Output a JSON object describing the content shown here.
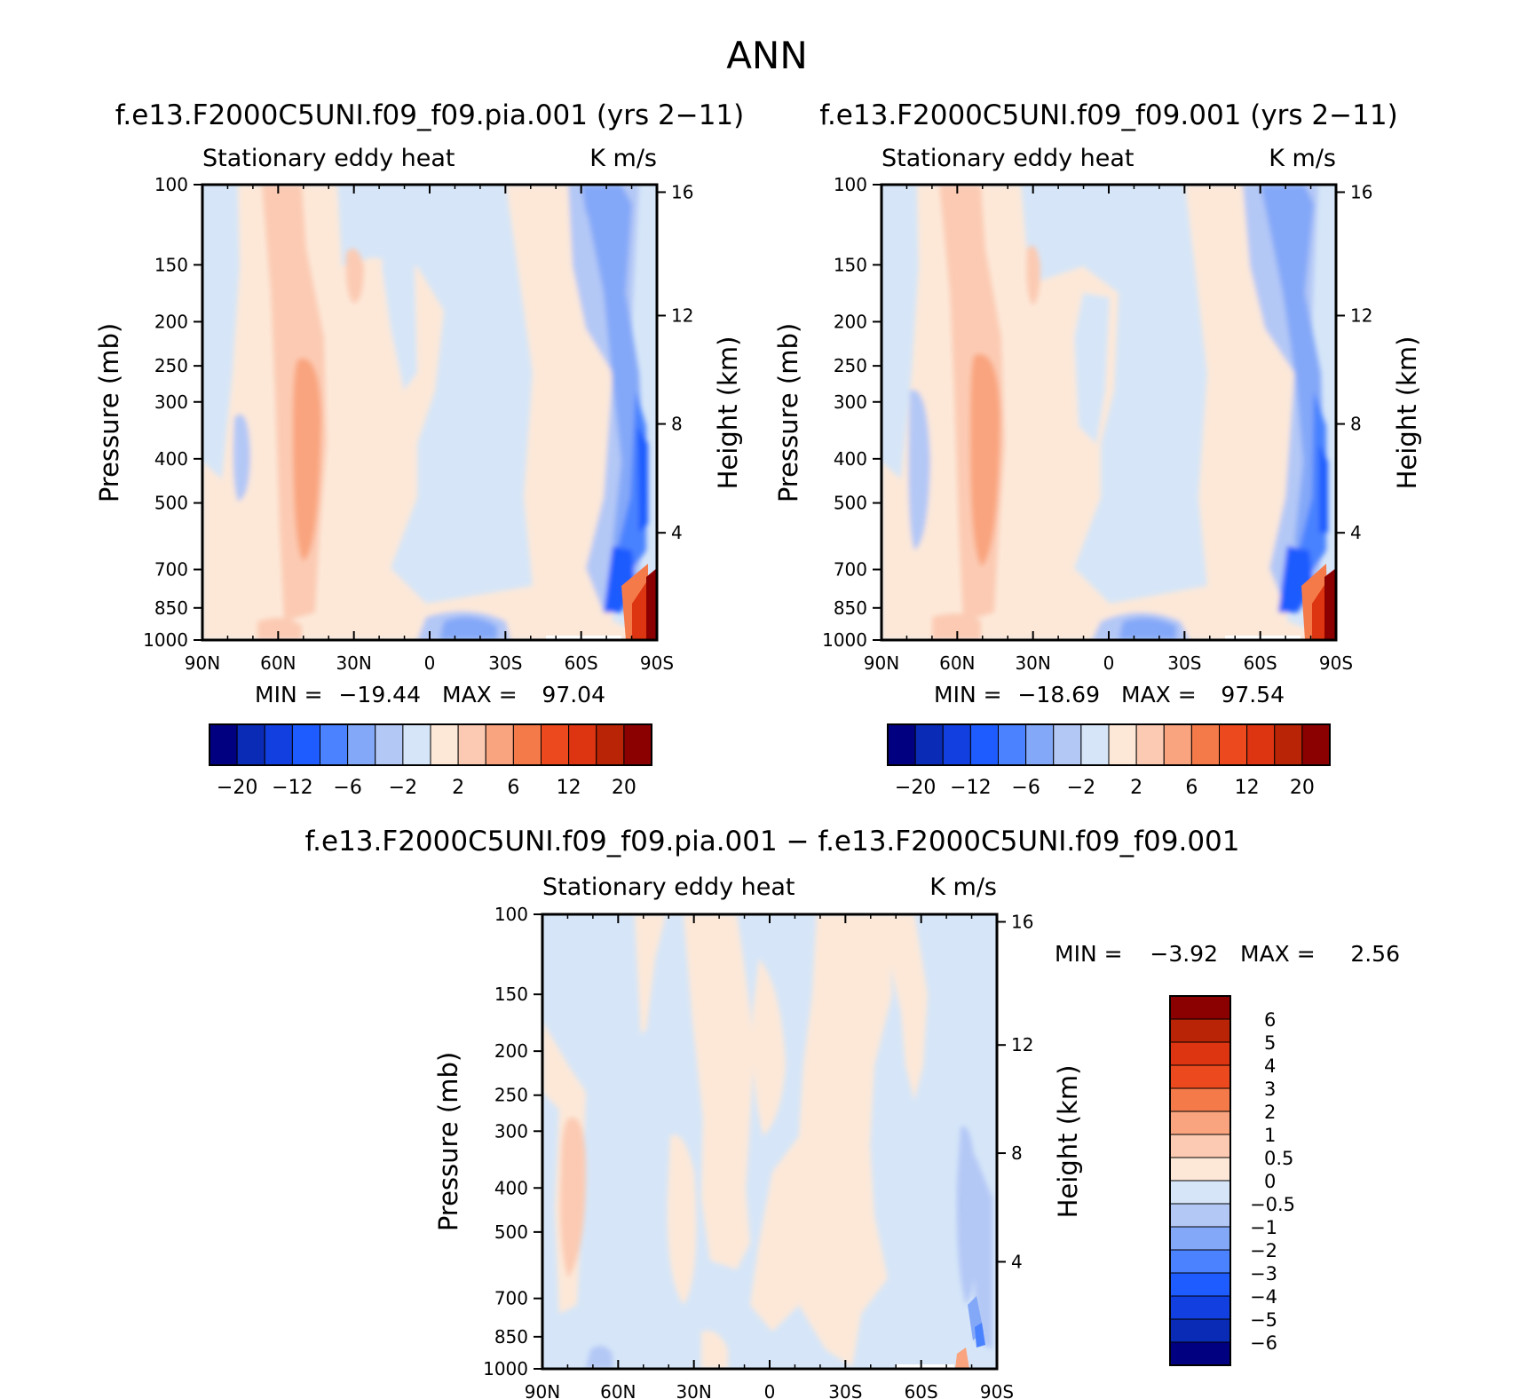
{
  "page_title": "ANN",
  "chart_data": [
    {
      "type": "heatmap",
      "title": "f.e13.F2000C5UNI.f09_f09.pia.001 (yrs 2-11)",
      "left_subtitle": "Stationary eddy heat",
      "right_subtitle": "K m/s",
      "ylabel": "Pressure (mb)",
      "y2label": "Height (km)",
      "x_ticks": [
        "90N",
        "60N",
        "30N",
        "0",
        "30S",
        "60S",
        "90S"
      ],
      "y_ticks": [
        "100",
        "150",
        "200",
        "250",
        "300",
        "400",
        "500",
        "700",
        "850",
        "1000"
      ],
      "y2_ticks": [
        "16",
        "12",
        "8",
        "4"
      ],
      "min_label": "MIN =",
      "min_value": "-19.44",
      "max_label": "MAX =",
      "max_value": "97.04",
      "colorbar_levels": [
        -20,
        -16,
        -12,
        -8,
        -6,
        -4,
        -2,
        0,
        2,
        4,
        6,
        8,
        12,
        16,
        20
      ],
      "colorbar_labels": [
        "-20",
        "-12",
        "-6",
        "-2",
        "2",
        "6",
        "12",
        "20"
      ],
      "xlim": [
        90,
        -90
      ],
      "ylim": [
        1000,
        100
      ],
      "log_scale_y": true
    },
    {
      "type": "heatmap",
      "title": "f.e13.F2000C5UNI.f09_f09.001 (yrs 2-11)",
      "left_subtitle": "Stationary eddy heat",
      "right_subtitle": "K m/s",
      "ylabel": "Pressure (mb)",
      "y2label": "Height (km)",
      "x_ticks": [
        "90N",
        "60N",
        "30N",
        "0",
        "30S",
        "60S",
        "90S"
      ],
      "y_ticks": [
        "100",
        "150",
        "200",
        "250",
        "300",
        "400",
        "500",
        "700",
        "850",
        "1000"
      ],
      "y2_ticks": [
        "16",
        "12",
        "8",
        "4"
      ],
      "min_label": "MIN =",
      "min_value": "-18.69",
      "max_label": "MAX =",
      "max_value": "97.54",
      "colorbar_levels": [
        -20,
        -16,
        -12,
        -8,
        -6,
        -4,
        -2,
        0,
        2,
        4,
        6,
        8,
        12,
        16,
        20
      ],
      "colorbar_labels": [
        "-20",
        "-12",
        "-6",
        "-2",
        "2",
        "6",
        "12",
        "20"
      ],
      "xlim": [
        90,
        -90
      ],
      "ylim": [
        1000,
        100
      ],
      "log_scale_y": true
    },
    {
      "type": "heatmap",
      "title": "f.e13.F2000C5UNI.f09_f09.pia.001 - f.e13.F2000C5UNI.f09_f09.001",
      "left_subtitle": "Stationary eddy heat",
      "right_subtitle": "K m/s",
      "ylabel": "Pressure (mb)",
      "y2label": "Height (km)",
      "x_ticks": [
        "90N",
        "60N",
        "30N",
        "0",
        "30S",
        "60S",
        "90S"
      ],
      "y_ticks": [
        "100",
        "150",
        "200",
        "250",
        "300",
        "400",
        "500",
        "700",
        "850",
        "1000"
      ],
      "y2_ticks": [
        "16",
        "12",
        "8",
        "4"
      ],
      "min_label": "MIN =",
      "min_value": "-3.92",
      "max_label": "MAX =",
      "max_value": "2.56",
      "colorbar_levels": [
        6,
        5,
        4,
        3,
        2,
        1,
        0.5,
        0,
        -0.5,
        -1,
        -2,
        -3,
        -4,
        -5,
        -6
      ],
      "colorbar_labels": [
        "6",
        "5",
        "4",
        "3",
        "2",
        "1",
        "0.5",
        "0",
        "-0.5",
        "-1",
        "-2",
        "-3",
        "-4",
        "-5",
        "-6"
      ],
      "xlim": [
        90,
        -90
      ],
      "ylim": [
        1000,
        100
      ],
      "log_scale_y": true
    }
  ],
  "colors": {
    "palette": [
      "#000080",
      "#0a2bb5",
      "#1240e0",
      "#1f5cff",
      "#4a82ff",
      "#84a8f8",
      "#b4c8f6",
      "#d6e6f8",
      "#fde8d8",
      "#fccab2",
      "#f9a47e",
      "#f47a4a",
      "#ec4a1e",
      "#dd3412",
      "#b82405",
      "#8b0000"
    ],
    "diff_palette": [
      "#8b0000",
      "#b82405",
      "#dd3412",
      "#ec4a1e",
      "#f47a4a",
      "#f9a47e",
      "#fccab2",
      "#fde8d8",
      "#d6e6f8",
      "#b4c8f6",
      "#84a8f8",
      "#4a82ff",
      "#1f5cff",
      "#1240e0",
      "#0a2bb5",
      "#000080"
    ]
  }
}
